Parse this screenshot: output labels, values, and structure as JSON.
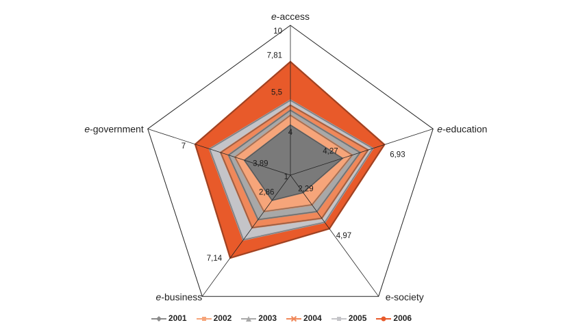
{
  "chart_data": {
    "type": "radar",
    "axes": [
      "e-access",
      "e-education",
      "e-society",
      "e-business",
      "e-government"
    ],
    "axis_labels": [
      {
        "prefix": "e",
        "suffix": "-access"
      },
      {
        "prefix": "e",
        "suffix": "-education"
      },
      {
        "prefix": "",
        "suffix": "e-society"
      },
      {
        "prefix": "e",
        "suffix": "-business"
      },
      {
        "prefix": "e",
        "suffix": "-government"
      }
    ],
    "rlim": [
      1,
      10
    ],
    "scale_labels": [
      "10",
      "1"
    ],
    "series": [
      {
        "name": "2001",
        "color": "#8a8a8a",
        "marker": "diamond",
        "values": [
          4,
          4.27,
          2.29,
          2.86,
          3.89
        ]
      },
      {
        "name": "2002",
        "color": "#f6a57a",
        "marker": "square",
        "values": [
          4.6,
          4.9,
          3.2,
          3.7,
          4.5
        ]
      },
      {
        "name": "2003",
        "color": "#a8a8a8",
        "marker": "triangle",
        "values": [
          4.9,
          5.4,
          3.7,
          4.3,
          4.9
        ]
      },
      {
        "name": "2004",
        "color": "#f0885a",
        "marker": "cross",
        "values": [
          5.2,
          5.9,
          4.2,
          4.9,
          5.4
        ]
      },
      {
        "name": "2005",
        "color": "#c4c4c8",
        "marker": "square",
        "values": [
          5.5,
          6.2,
          4.5,
          5.8,
          6.1
        ]
      },
      {
        "name": "2006",
        "color": "#e85a2a",
        "marker": "circle",
        "values": [
          7.81,
          6.93,
          4.97,
          7.14,
          7
        ]
      }
    ],
    "data_labels": [
      {
        "axis": 0,
        "text": "7,81"
      },
      {
        "axis": 0,
        "text": "5,5"
      },
      {
        "axis": 0,
        "text": "4"
      },
      {
        "axis": 1,
        "text": "6,93"
      },
      {
        "axis": 1,
        "text": "4,27"
      },
      {
        "axis": 2,
        "text": "4,97"
      },
      {
        "axis": 2,
        "text": "2,29"
      },
      {
        "axis": 3,
        "text": "7,14"
      },
      {
        "axis": 3,
        "text": "2,86"
      },
      {
        "axis": 4,
        "text": "7"
      },
      {
        "axis": 4,
        "text": "3,89"
      }
    ],
    "legend": {
      "position": "bottom"
    }
  }
}
